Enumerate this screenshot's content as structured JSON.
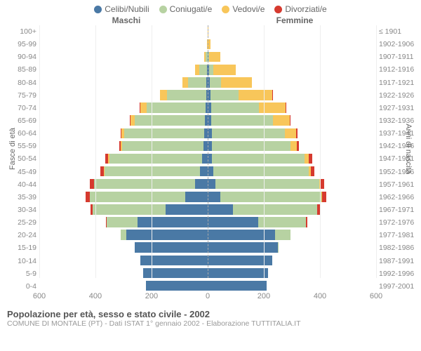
{
  "chart": {
    "type": "population-pyramid",
    "legend": [
      {
        "label": "Celibi/Nubili",
        "color": "#4a79a5"
      },
      {
        "label": "Coniugati/e",
        "color": "#b7d2a2"
      },
      {
        "label": "Vedovi/e",
        "color": "#f8c65a"
      },
      {
        "label": "Divorziati/e",
        "color": "#d63a2f"
      }
    ],
    "left_header": "Maschi",
    "right_header": "Femmine",
    "y_title_left": "Fasce di età",
    "y_title_right": "Anni di nascita",
    "x_max": 600,
    "x_ticks": [
      600,
      400,
      200,
      0,
      200,
      400,
      600
    ],
    "colors": {
      "background": "#ffffff",
      "grid": "#eeeeee",
      "axis_dash": "#aaaaaa",
      "label_text": "#888888"
    },
    "fontsize": {
      "legend": 12,
      "labels": 10.5,
      "title": 13
    },
    "rows": [
      {
        "age": "100+",
        "birth": "≤ 1901",
        "m": {
          "c": 0,
          "co": 0,
          "v": 1,
          "d": 0
        },
        "f": {
          "c": 0,
          "co": 0,
          "v": 2,
          "d": 0
        }
      },
      {
        "age": "95-99",
        "birth": "1902-1906",
        "m": {
          "c": 0,
          "co": 1,
          "v": 2,
          "d": 0
        },
        "f": {
          "c": 1,
          "co": 0,
          "v": 10,
          "d": 0
        }
      },
      {
        "age": "90-94",
        "birth": "1907-1911",
        "m": {
          "c": 1,
          "co": 6,
          "v": 6,
          "d": 0
        },
        "f": {
          "c": 3,
          "co": 3,
          "v": 40,
          "d": 0
        }
      },
      {
        "age": "85-89",
        "birth": "1912-1916",
        "m": {
          "c": 2,
          "co": 28,
          "v": 14,
          "d": 0
        },
        "f": {
          "c": 6,
          "co": 14,
          "v": 80,
          "d": 0
        }
      },
      {
        "age": "80-84",
        "birth": "1917-1921",
        "m": {
          "c": 4,
          "co": 65,
          "v": 20,
          "d": 0
        },
        "f": {
          "c": 8,
          "co": 40,
          "v": 110,
          "d": 0
        }
      },
      {
        "age": "75-79",
        "birth": "1922-1926",
        "m": {
          "c": 6,
          "co": 140,
          "v": 24,
          "d": 0
        },
        "f": {
          "c": 10,
          "co": 100,
          "v": 120,
          "d": 2
        }
      },
      {
        "age": "70-74",
        "birth": "1927-1931",
        "m": {
          "c": 8,
          "co": 210,
          "v": 22,
          "d": 2
        },
        "f": {
          "c": 12,
          "co": 170,
          "v": 95,
          "d": 3
        }
      },
      {
        "age": "65-69",
        "birth": "1932-1936",
        "m": {
          "c": 10,
          "co": 250,
          "v": 14,
          "d": 3
        },
        "f": {
          "c": 12,
          "co": 220,
          "v": 60,
          "d": 4
        }
      },
      {
        "age": "60-64",
        "birth": "1937-1941",
        "m": {
          "c": 12,
          "co": 285,
          "v": 10,
          "d": 4
        },
        "f": {
          "c": 14,
          "co": 260,
          "v": 40,
          "d": 6
        }
      },
      {
        "age": "55-59",
        "birth": "1942-1946",
        "m": {
          "c": 14,
          "co": 290,
          "v": 6,
          "d": 5
        },
        "f": {
          "c": 14,
          "co": 280,
          "v": 24,
          "d": 6
        }
      },
      {
        "age": "50-54",
        "birth": "1947-1951",
        "m": {
          "c": 20,
          "co": 330,
          "v": 4,
          "d": 10
        },
        "f": {
          "c": 16,
          "co": 330,
          "v": 14,
          "d": 12
        }
      },
      {
        "age": "45-49",
        "birth": "1952-1956",
        "m": {
          "c": 28,
          "co": 340,
          "v": 2,
          "d": 12
        },
        "f": {
          "c": 20,
          "co": 340,
          "v": 8,
          "d": 12
        }
      },
      {
        "age": "40-44",
        "birth": "1957-1961",
        "m": {
          "c": 45,
          "co": 360,
          "v": 1,
          "d": 14
        },
        "f": {
          "c": 28,
          "co": 370,
          "v": 4,
          "d": 14
        }
      },
      {
        "age": "35-39",
        "birth": "1962-1966",
        "m": {
          "c": 80,
          "co": 340,
          "v": 0,
          "d": 14
        },
        "f": {
          "c": 45,
          "co": 360,
          "v": 2,
          "d": 16
        }
      },
      {
        "age": "30-34",
        "birth": "1967-1971",
        "m": {
          "c": 150,
          "co": 260,
          "v": 0,
          "d": 8
        },
        "f": {
          "c": 90,
          "co": 300,
          "v": 1,
          "d": 10
        }
      },
      {
        "age": "25-29",
        "birth": "1972-1976",
        "m": {
          "c": 250,
          "co": 110,
          "v": 0,
          "d": 2
        },
        "f": {
          "c": 180,
          "co": 170,
          "v": 0,
          "d": 4
        }
      },
      {
        "age": "20-24",
        "birth": "1977-1981",
        "m": {
          "c": 290,
          "co": 20,
          "v": 0,
          "d": 0
        },
        "f": {
          "c": 240,
          "co": 55,
          "v": 0,
          "d": 0
        }
      },
      {
        "age": "15-19",
        "birth": "1982-1986",
        "m": {
          "c": 260,
          "co": 0,
          "v": 0,
          "d": 0
        },
        "f": {
          "c": 250,
          "co": 2,
          "v": 0,
          "d": 0
        }
      },
      {
        "age": "10-14",
        "birth": "1987-1991",
        "m": {
          "c": 240,
          "co": 0,
          "v": 0,
          "d": 0
        },
        "f": {
          "c": 230,
          "co": 0,
          "v": 0,
          "d": 0
        }
      },
      {
        "age": "5-9",
        "birth": "1992-1996",
        "m": {
          "c": 230,
          "co": 0,
          "v": 0,
          "d": 0
        },
        "f": {
          "c": 215,
          "co": 0,
          "v": 0,
          "d": 0
        }
      },
      {
        "age": "0-4",
        "birth": "1997-2001",
        "m": {
          "c": 220,
          "co": 0,
          "v": 0,
          "d": 0
        },
        "f": {
          "c": 210,
          "co": 0,
          "v": 0,
          "d": 0
        }
      }
    ]
  },
  "footer": {
    "title": "Popolazione per età, sesso e stato civile - 2002",
    "subtitle": "COMUNE DI MONTALE (PT) - Dati ISTAT 1° gennaio 2002 - Elaborazione TUTTITALIA.IT"
  }
}
